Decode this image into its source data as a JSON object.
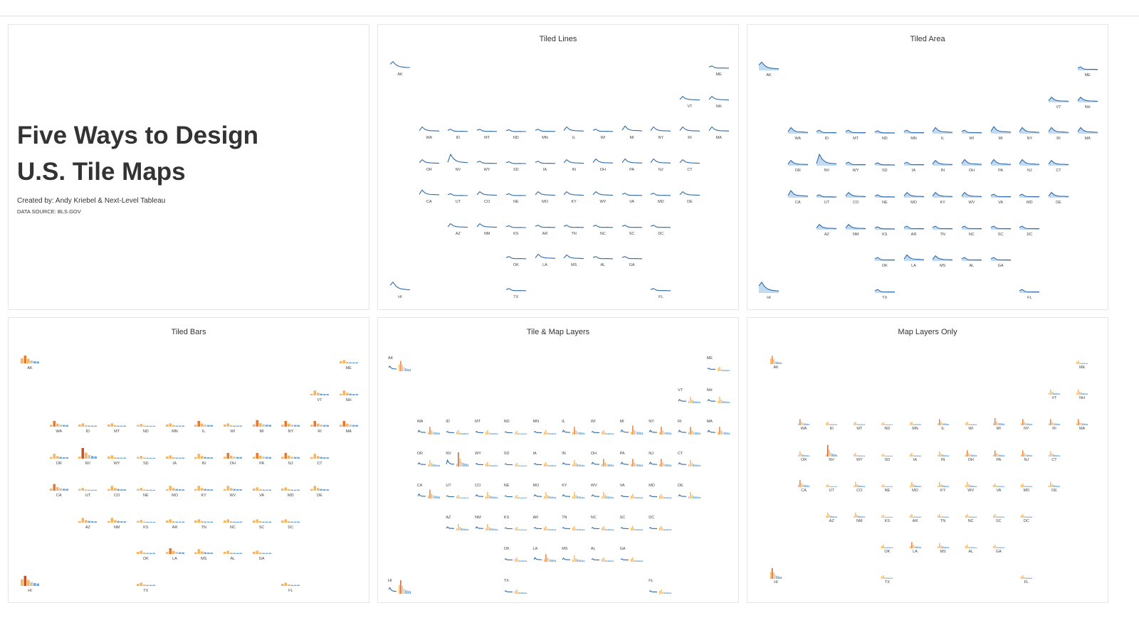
{
  "title": {
    "line1": "Five Ways to Design",
    "line2": "U.S. Tile Maps",
    "credit": "Created by: Andy Kriebel & Next-Level Tableau",
    "source": "DATA SOURCE: BLS.GOV"
  },
  "panels": {
    "lines": "Tiled Lines",
    "area": "Tiled Area",
    "bars": "Tiled Bars",
    "layers": "Tile & Map Layers",
    "maplayers": "Map Layers Only"
  },
  "colors": {
    "line": "#2f6ba7",
    "area_fill": "#c3dbf0",
    "bar_cool": "#6fa8dc",
    "bar_pale": "#cfc6b4",
    "bar_warm": "#f6b562",
    "bar_hot": "#e8782f",
    "bar_peak": "#c4532a"
  },
  "chart_data": {
    "type": "tile-map",
    "states": [
      {
        "code": "AK",
        "profile": "early",
        "peak": 2
      },
      {
        "code": "ME",
        "profile": "flat",
        "peak": 1
      },
      {
        "code": "VT",
        "profile": "mid",
        "peak": 1
      },
      {
        "code": "NH",
        "profile": "mid",
        "peak": 1
      },
      {
        "code": "WA",
        "profile": "mid",
        "peak": 2
      },
      {
        "code": "ID",
        "profile": "flat",
        "peak": 1
      },
      {
        "code": "MT",
        "profile": "flat",
        "peak": 1
      },
      {
        "code": "ND",
        "profile": "flat",
        "peak": 0
      },
      {
        "code": "MN",
        "profile": "flat",
        "peak": 1
      },
      {
        "code": "IL",
        "profile": "mid",
        "peak": 2
      },
      {
        "code": "WI",
        "profile": "flat",
        "peak": 1
      },
      {
        "code": "MI",
        "profile": "mid",
        "peak": 3
      },
      {
        "code": "NY",
        "profile": "mid",
        "peak": 2
      },
      {
        "code": "RI",
        "profile": "mid",
        "peak": 2
      },
      {
        "code": "MA",
        "profile": "mid",
        "peak": 2
      },
      {
        "code": "OR",
        "profile": "mid",
        "peak": 1
      },
      {
        "code": "NV",
        "profile": "spike",
        "peak": 4
      },
      {
        "code": "WY",
        "profile": "flat",
        "peak": 1
      },
      {
        "code": "SD",
        "profile": "flat",
        "peak": 0
      },
      {
        "code": "IA",
        "profile": "flat",
        "peak": 1
      },
      {
        "code": "IN",
        "profile": "mid",
        "peak": 1
      },
      {
        "code": "OH",
        "profile": "mid",
        "peak": 2
      },
      {
        "code": "PA",
        "profile": "mid",
        "peak": 2
      },
      {
        "code": "NJ",
        "profile": "mid",
        "peak": 2
      },
      {
        "code": "CT",
        "profile": "mid",
        "peak": 1
      },
      {
        "code": "CA",
        "profile": "mid",
        "peak": 3
      },
      {
        "code": "UT",
        "profile": "flat",
        "peak": 0
      },
      {
        "code": "CO",
        "profile": "mid",
        "peak": 1
      },
      {
        "code": "NE",
        "profile": "flat",
        "peak": 0
      },
      {
        "code": "MO",
        "profile": "mid",
        "peak": 1
      },
      {
        "code": "KY",
        "profile": "mid",
        "peak": 1
      },
      {
        "code": "WV",
        "profile": "mid",
        "peak": 1
      },
      {
        "code": "VA",
        "profile": "flat",
        "peak": 1
      },
      {
        "code": "MD",
        "profile": "flat",
        "peak": 1
      },
      {
        "code": "DE",
        "profile": "mid",
        "peak": 1
      },
      {
        "code": "AZ",
        "profile": "mid",
        "peak": 1
      },
      {
        "code": "NM",
        "profile": "mid",
        "peak": 1
      },
      {
        "code": "KS",
        "profile": "flat",
        "peak": 0
      },
      {
        "code": "AR",
        "profile": "flat",
        "peak": 1
      },
      {
        "code": "TN",
        "profile": "flat",
        "peak": 1
      },
      {
        "code": "NC",
        "profile": "flat",
        "peak": 1
      },
      {
        "code": "SC",
        "profile": "flat",
        "peak": 1
      },
      {
        "code": "DC",
        "profile": "flat",
        "peak": 1
      },
      {
        "code": "OK",
        "profile": "flat",
        "peak": 1
      },
      {
        "code": "LA",
        "profile": "mid",
        "peak": 2
      },
      {
        "code": "MS",
        "profile": "mid",
        "peak": 1
      },
      {
        "code": "AL",
        "profile": "flat",
        "peak": 1
      },
      {
        "code": "GA",
        "profile": "flat",
        "peak": 1
      },
      {
        "code": "HI",
        "profile": "early",
        "peak": 4
      },
      {
        "code": "TX",
        "profile": "flat",
        "peak": 1
      },
      {
        "code": "FL",
        "profile": "flat",
        "peak": 1
      }
    ]
  }
}
